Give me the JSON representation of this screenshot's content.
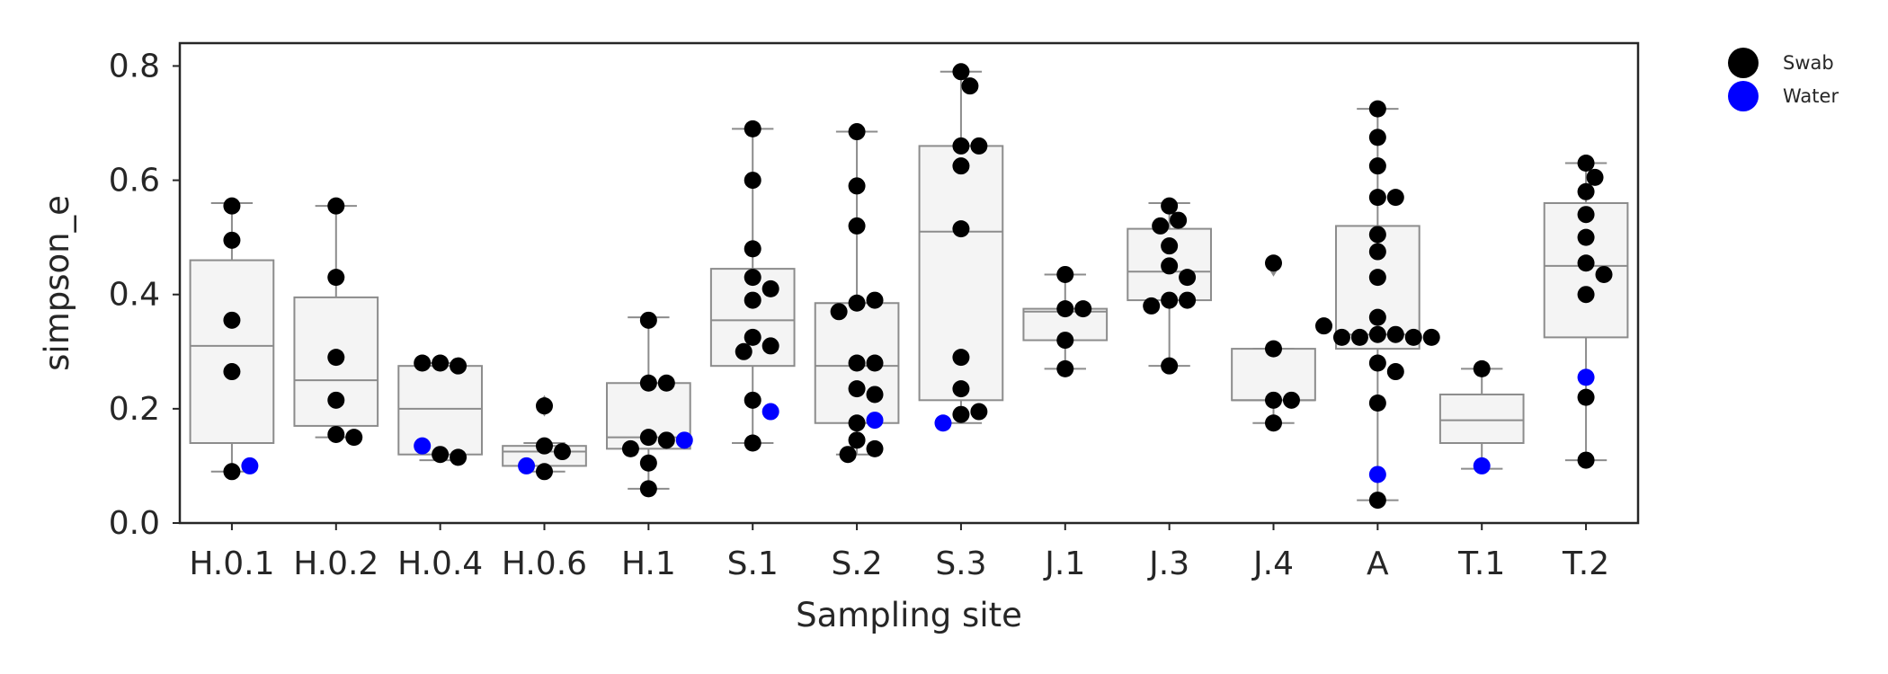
{
  "chart_data": {
    "type": "box+swarm",
    "xlabel": "Sampling site",
    "ylabel": "simpson_e",
    "ylim": [
      0,
      0.84
    ],
    "yticks": [
      "0.0",
      "0.2",
      "0.4",
      "0.6",
      "0.8"
    ],
    "grid": false,
    "legend_position": "outside-top-right",
    "categories": [
      "H.0.1",
      "H.0.2",
      "H.0.4",
      "H.0.6",
      "H.1",
      "S.1",
      "S.2",
      "S.3",
      "J.1",
      "J.3",
      "J.4",
      "A",
      "T.1",
      "T.2"
    ],
    "boxes": [
      {
        "site": "H.0.1",
        "q1": 0.14,
        "median": 0.31,
        "q3": 0.46,
        "wlow": 0.09,
        "whigh": 0.56,
        "outliers": []
      },
      {
        "site": "H.0.2",
        "q1": 0.17,
        "median": 0.25,
        "q3": 0.395,
        "wlow": 0.15,
        "whigh": 0.555,
        "outliers": []
      },
      {
        "site": "H.0.4",
        "q1": 0.12,
        "median": 0.2,
        "q3": 0.275,
        "wlow": 0.11,
        "whigh": 0.28,
        "outliers": []
      },
      {
        "site": "H.0.6",
        "q1": 0.1,
        "median": 0.125,
        "q3": 0.135,
        "wlow": 0.09,
        "whigh": 0.14,
        "outliers": [
          0.205
        ]
      },
      {
        "site": "H.1",
        "q1": 0.13,
        "median": 0.15,
        "q3": 0.245,
        "wlow": 0.06,
        "whigh": 0.36,
        "outliers": []
      },
      {
        "site": "S.1",
        "q1": 0.275,
        "median": 0.355,
        "q3": 0.445,
        "wlow": 0.14,
        "whigh": 0.69,
        "outliers": []
      },
      {
        "site": "S.2",
        "q1": 0.175,
        "median": 0.275,
        "q3": 0.385,
        "wlow": 0.12,
        "whigh": 0.685,
        "outliers": []
      },
      {
        "site": "S.3",
        "q1": 0.215,
        "median": 0.51,
        "q3": 0.66,
        "wlow": 0.175,
        "whigh": 0.79,
        "outliers": []
      },
      {
        "site": "J.1",
        "q1": 0.32,
        "median": 0.37,
        "q3": 0.375,
        "wlow": 0.27,
        "whigh": 0.435,
        "outliers": []
      },
      {
        "site": "J.3",
        "q1": 0.39,
        "median": 0.44,
        "q3": 0.515,
        "wlow": 0.275,
        "whigh": 0.56,
        "outliers": []
      },
      {
        "site": "J.4",
        "q1": 0.215,
        "median": 0.215,
        "q3": 0.305,
        "wlow": 0.175,
        "whigh": 0.305,
        "outliers": [
          0.45
        ]
      },
      {
        "site": "A",
        "q1": 0.305,
        "median": 0.33,
        "q3": 0.52,
        "wlow": 0.04,
        "whigh": 0.725,
        "outliers": []
      },
      {
        "site": "T.1",
        "q1": 0.14,
        "median": 0.18,
        "q3": 0.225,
        "wlow": 0.095,
        "whigh": 0.27,
        "outliers": []
      },
      {
        "site": "T.2",
        "q1": 0.325,
        "median": 0.45,
        "q3": 0.56,
        "wlow": 0.11,
        "whigh": 0.63,
        "outliers": []
      }
    ],
    "series": [
      {
        "name": "Swab",
        "color": "#000000",
        "points": [
          {
            "site": "H.0.1",
            "values": [
              0.555,
              0.495,
              0.355,
              0.265,
              0.09
            ]
          },
          {
            "site": "H.0.2",
            "values": [
              0.555,
              0.43,
              0.29,
              0.215,
              0.155,
              0.15
            ]
          },
          {
            "site": "H.0.4",
            "values": [
              0.28,
              0.275,
              0.28,
              0.12,
              0.115
            ]
          },
          {
            "site": "H.0.6",
            "values": [
              0.205,
              0.135,
              0.125,
              0.09
            ]
          },
          {
            "site": "H.1",
            "values": [
              0.355,
              0.245,
              0.245,
              0.15,
              0.145,
              0.13,
              0.105,
              0.06
            ]
          },
          {
            "site": "S.1",
            "values": [
              0.69,
              0.6,
              0.48,
              0.43,
              0.41,
              0.39,
              0.325,
              0.31,
              0.3,
              0.215,
              0.14
            ]
          },
          {
            "site": "S.2",
            "values": [
              0.685,
              0.59,
              0.52,
              0.385,
              0.39,
              0.37,
              0.28,
              0.28,
              0.235,
              0.225,
              0.175,
              0.145,
              0.13,
              0.12
            ]
          },
          {
            "site": "S.3",
            "values": [
              0.79,
              0.765,
              0.66,
              0.66,
              0.625,
              0.515,
              0.29,
              0.235,
              0.19,
              0.195
            ]
          },
          {
            "site": "J.1",
            "values": [
              0.435,
              0.375,
              0.375,
              0.32,
              0.27
            ]
          },
          {
            "site": "J.3",
            "values": [
              0.555,
              0.53,
              0.52,
              0.485,
              0.45,
              0.43,
              0.39,
              0.39,
              0.38,
              0.275
            ]
          },
          {
            "site": "J.4",
            "values": [
              0.455,
              0.305,
              0.215,
              0.215,
              0.175
            ]
          },
          {
            "site": "A",
            "values": [
              0.725,
              0.675,
              0.625,
              0.57,
              0.57,
              0.505,
              0.475,
              0.43,
              0.36,
              0.33,
              0.33,
              0.325,
              0.325,
              0.325,
              0.325,
              0.345,
              0.28,
              0.265,
              0.21,
              0.04
            ]
          },
          {
            "site": "T.1",
            "values": [
              0.27
            ]
          },
          {
            "site": "T.2",
            "values": [
              0.63,
              0.605,
              0.58,
              0.54,
              0.5,
              0.455,
              0.435,
              0.4,
              0.22,
              0.11
            ]
          }
        ]
      },
      {
        "name": "Water",
        "color": "#0000ff",
        "points": [
          {
            "site": "H.0.1",
            "values": [
              0.1
            ]
          },
          {
            "site": "H.0.4",
            "values": [
              0.135
            ]
          },
          {
            "site": "H.0.6",
            "values": [
              0.1
            ]
          },
          {
            "site": "H.1",
            "values": [
              0.145
            ]
          },
          {
            "site": "S.1",
            "values": [
              0.195
            ]
          },
          {
            "site": "S.2",
            "values": [
              0.18
            ]
          },
          {
            "site": "S.3",
            "values": [
              0.175
            ]
          },
          {
            "site": "A",
            "values": [
              0.085
            ]
          },
          {
            "site": "T.1",
            "values": [
              0.1
            ]
          },
          {
            "site": "T.2",
            "values": [
              0.255
            ]
          }
        ]
      }
    ]
  }
}
